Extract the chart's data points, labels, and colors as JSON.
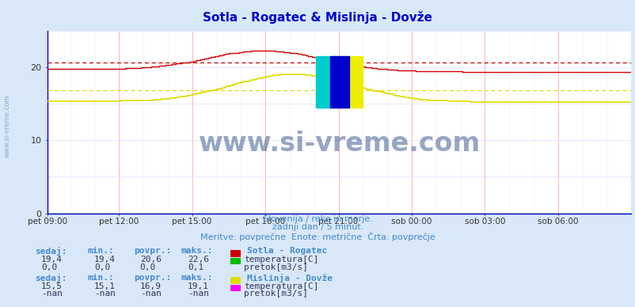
{
  "title": "Sotla - Rogatec & Mislinja - Dovže",
  "title_color": "#0000cc",
  "bg_color": "#d8e8f8",
  "plot_bg_color": "#ffffff",
  "grid_color_v": "#ffaaaa",
  "grid_color_h": "#ddddff",
  "x_labels": [
    "pet 09:00",
    "pet 12:00",
    "pet 15:00",
    "pet 18:00",
    "pet 21:00",
    "sob 00:00",
    "sob 03:00",
    "sob 06:00"
  ],
  "ylim": [
    0,
    25
  ],
  "yticks": [
    0,
    10,
    20
  ],
  "watermark": "www.si-vreme.com",
  "watermark_color": "#1a3a7a",
  "sub1_text": "Slovenija / reke in morje.",
  "sub2_text": "zadnji dan / 5 minut.",
  "sub3_text": "Meritve: povprečne  Enote: metrične  Črta: povprečje",
  "legend_color": "#4488cc",
  "sotla_label": "Sotla - Rogatec",
  "sotla_temp_color": "#cc0000",
  "sotla_flow_color": "#00bb00",
  "sotla_sedaj": "19,4",
  "sotla_min": "19,4",
  "sotla_povpr": "20,6",
  "sotla_maks": "22,6",
  "sotla_flow_sedaj": "0,0",
  "sotla_flow_min": "0,0",
  "sotla_flow_povpr": "0,0",
  "sotla_flow_maks": "0,1",
  "mislinja_label": "Mislinja - Dovže",
  "mislinja_temp_color": "#dddd00",
  "mislinja_flow_color": "#ff00ff",
  "mislinja_sedaj": "15,5",
  "mislinja_min": "15,1",
  "mislinja_povpr": "16,9",
  "mislinja_maks": "19,1",
  "mislinja_flow_sedaj": "-nan",
  "mislinja_flow_min": "-nan",
  "mislinja_flow_povpr": "-nan",
  "mislinja_flow_maks": "-nan",
  "axis_color": "#0000cc",
  "arrow_color": "#cc0000",
  "left_text_color": "#88aacc",
  "sotla_avg": 20.6,
  "mislinja_avg": 16.9
}
